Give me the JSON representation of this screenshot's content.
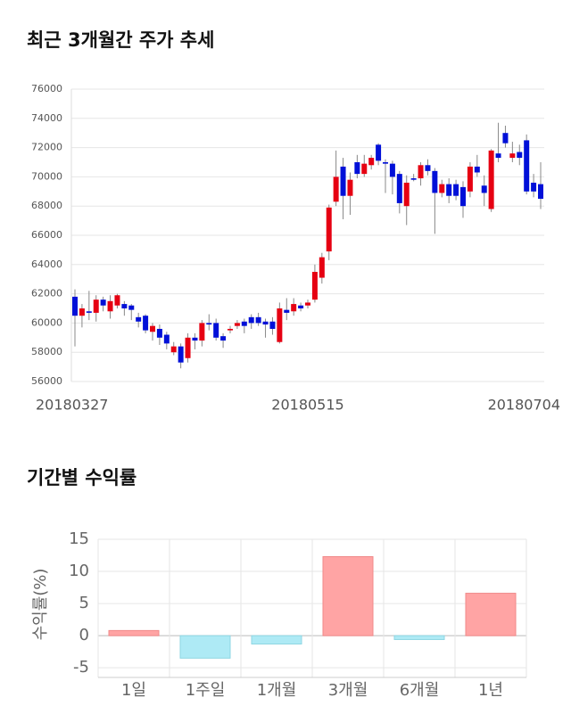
{
  "chart_data": [
    {
      "type": "candlestick",
      "title": "최근 3개월간 주가 추세",
      "open": [
        61800,
        60500,
        60800,
        60700,
        61600,
        60800,
        61200,
        61300,
        61200,
        60400,
        60500,
        59400,
        59600,
        59200,
        58000,
        58400,
        57600,
        59000,
        58800,
        60000,
        60000,
        59100,
        59500,
        59800,
        60100,
        60400,
        60400,
        60100,
        60100,
        58700,
        60900,
        60800,
        61200,
        61200,
        61600,
        63100,
        64900,
        68300,
        70700,
        68700,
        71000,
        70200,
        70800,
        72200,
        71000,
        70900,
        70200,
        68000,
        69900,
        69900,
        70800,
        70400,
        68900,
        69500,
        69500,
        69300,
        69000,
        70700,
        69400,
        67800,
        71600,
        73000,
        71300,
        71700,
        72500,
        69600,
        69500
      ],
      "high": [
        62300,
        61300,
        62200,
        61900,
        61800,
        61900,
        62000,
        61500,
        61300,
        60700,
        60600,
        60000,
        59900,
        59400,
        58700,
        58600,
        59300,
        59300,
        60200,
        60600,
        60300,
        59300,
        59800,
        60200,
        60300,
        60600,
        60700,
        60300,
        60400,
        61400,
        61700,
        61700,
        61400,
        61600,
        64000,
        64800,
        68100,
        71800,
        71300,
        70300,
        71500,
        71500,
        71500,
        72300,
        71200,
        71100,
        70400,
        70100,
        70200,
        71000,
        71200,
        70600,
        69800,
        69900,
        69800,
        69700,
        71000,
        71500,
        70100,
        71900,
        73700,
        73500,
        72400,
        72200,
        72900,
        70200,
        71000
      ],
      "low": [
        58400,
        59700,
        60200,
        60100,
        60800,
        60300,
        61000,
        60500,
        60200,
        59700,
        59300,
        58800,
        58500,
        58200,
        57800,
        56900,
        57300,
        58200,
        58400,
        59500,
        58800,
        58300,
        59300,
        59600,
        59300,
        59600,
        59800,
        59000,
        59200,
        58600,
        60200,
        60500,
        60800,
        61000,
        61400,
        62700,
        64300,
        68000,
        67100,
        67400,
        69900,
        70000,
        70500,
        70800,
        68900,
        68800,
        67500,
        66700,
        69700,
        69400,
        70100,
        66100,
        68600,
        68200,
        68400,
        67200,
        68600,
        70000,
        68000,
        67600,
        71000,
        72000,
        71000,
        70800,
        68800,
        68600,
        67800
      ],
      "close": [
        60500,
        61000,
        60700,
        61600,
        61200,
        61500,
        61900,
        61000,
        60900,
        60100,
        59500,
        59800,
        59000,
        58600,
        58400,
        57300,
        59000,
        58800,
        60000,
        59900,
        59000,
        58800,
        59600,
        60000,
        59800,
        60000,
        60000,
        59900,
        59600,
        61000,
        60700,
        61300,
        61000,
        61400,
        63500,
        64500,
        67900,
        70000,
        68700,
        69800,
        70200,
        70900,
        71300,
        71100,
        70900,
        70000,
        68200,
        69600,
        69800,
        70800,
        70400,
        68900,
        69500,
        68700,
        68700,
        68000,
        70700,
        70300,
        68900,
        71800,
        71300,
        72300,
        71600,
        71300,
        69000,
        69000,
        68500
      ],
      "up_color": "#e60012",
      "down_color": "#0010d8",
      "wick_color": "#888888",
      "xlim": [
        0,
        66
      ],
      "xticks": [
        {
          "value": 0,
          "label": "20180327"
        },
        {
          "value": 33,
          "label": "20180515"
        },
        {
          "value": 66,
          "label": "20180704"
        }
      ],
      "ylim": [
        56000,
        76000
      ],
      "yticks": [
        56000,
        58000,
        60000,
        62000,
        64000,
        66000,
        68000,
        70000,
        72000,
        74000,
        76000
      ],
      "grid": true
    },
    {
      "type": "bar",
      "title": "기간별 수익률",
      "y_label": "수익률(%)",
      "categories": [
        "1일",
        "1주일",
        "1개월",
        "3개월",
        "6개월",
        "1년"
      ],
      "values": [
        0.8,
        -3.5,
        -1.3,
        12.3,
        -0.6,
        6.6
      ],
      "positive_color": "#ffa4a4",
      "negative_color": "#aeeaf5",
      "ylim": [
        -6.5,
        15
      ],
      "yticks": [
        -5,
        0,
        5,
        10,
        15
      ],
      "grid": true
    }
  ]
}
